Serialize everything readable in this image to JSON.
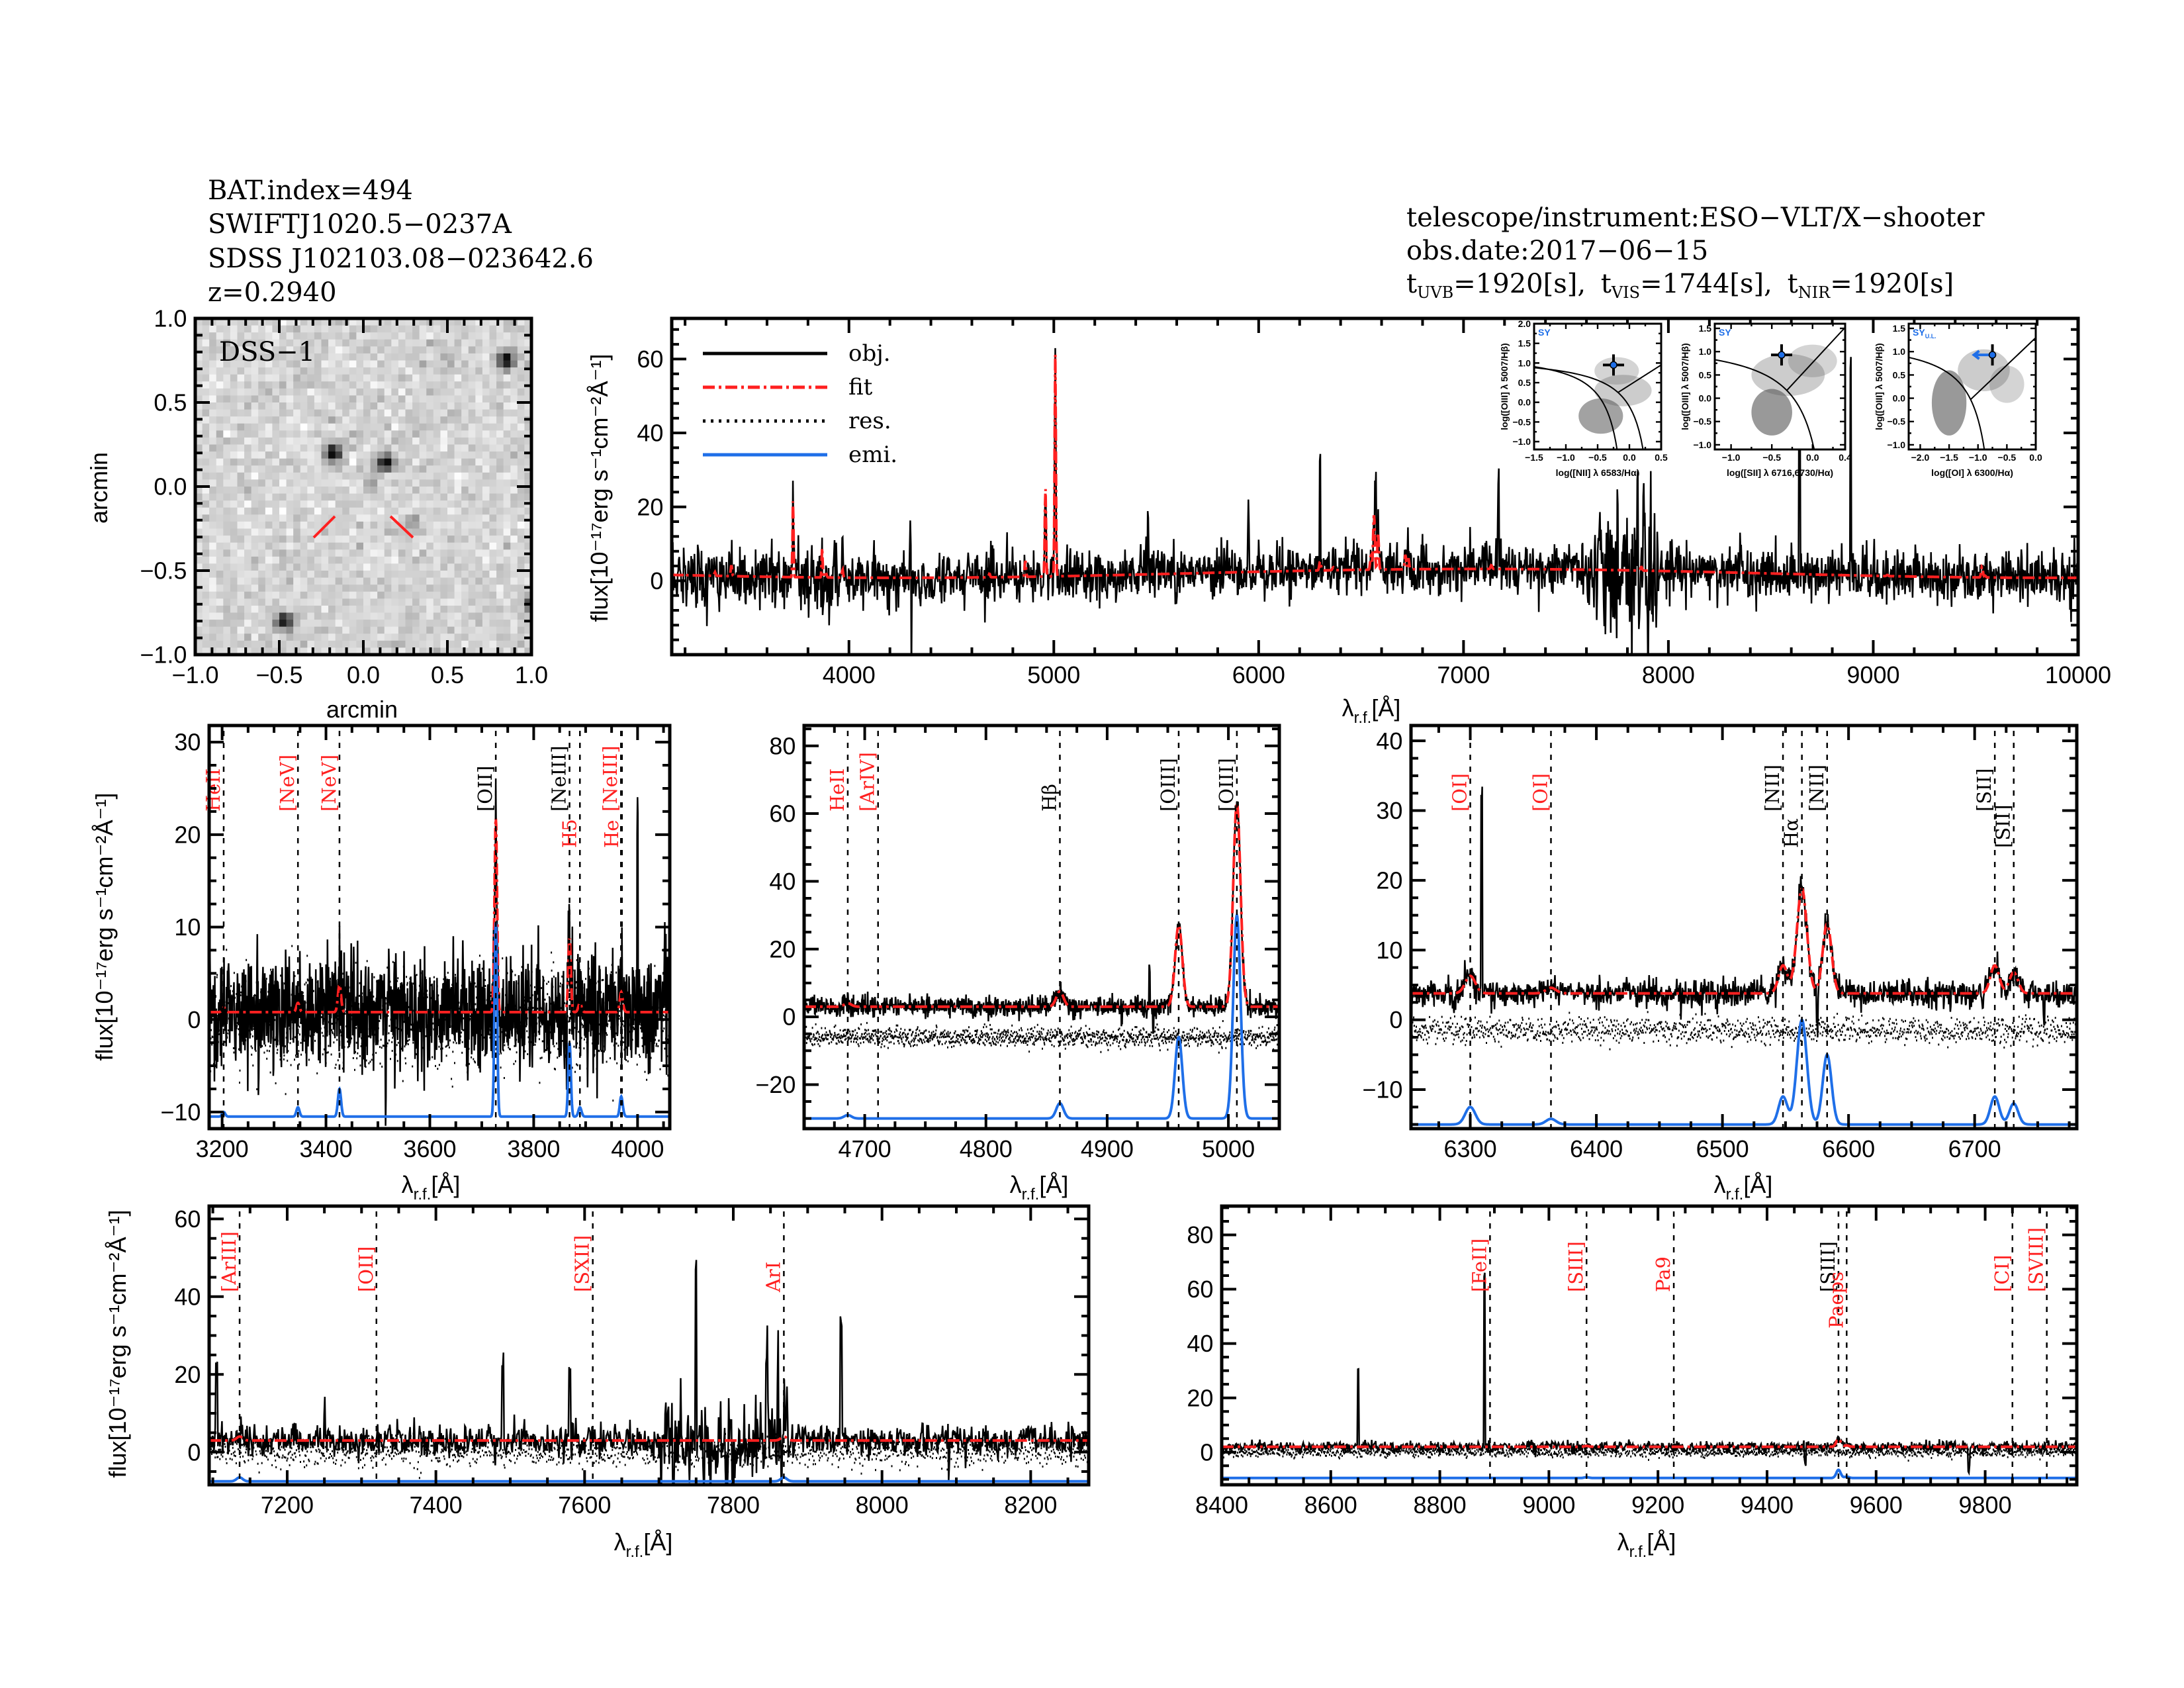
{
  "header": {
    "left": [
      "BAT.index=494",
      "SWIFTJ1020.5−0237A",
      "SDSS J102103.08−023642.6",
      "z=0.2940"
    ],
    "telescope": "telescope/instrument:ESO−VLT/X−shooter",
    "obs_date": "obs.date:2017−06−15",
    "exposures": [
      {
        "t": "t",
        "band": "UVB",
        "value": "=1920[s],"
      },
      {
        "t": "t",
        "band": "VIS",
        "value": "=1744[s],"
      },
      {
        "t": "t",
        "band": "NIR",
        "value": "=1920[s]"
      }
    ]
  },
  "labels": {
    "flux": "flux[10⁻¹⁷erg s⁻¹cm⁻²Å⁻¹]",
    "lambda": "λ",
    "lambda_sub": "r.f.",
    "lambda_unit": "[Å]",
    "arcmin": "arcmin",
    "dss": "DSS−1"
  },
  "legend": [
    {
      "label": "obj.",
      "color": "#000000",
      "style": "solid"
    },
    {
      "label": "fit",
      "color": "#ff2020",
      "style": "dashdot"
    },
    {
      "label": "res.",
      "color": "#000000",
      "style": "dotted"
    },
    {
      "label": "emi.",
      "color": "#1f6fe8",
      "style": "solid"
    }
  ],
  "colors": {
    "obj": "#000000",
    "fit": "#ff2020",
    "emi": "#1f6fe8",
    "red_label": "#ff2020",
    "black_label": "#000000"
  },
  "chart_data": {
    "type": "line",
    "dss": {
      "xlim": [
        -1.0,
        1.0
      ],
      "ylim": [
        -1.0,
        1.0
      ],
      "ticks": [
        "−1.0",
        "−0.5",
        "0.0",
        "0.5",
        "1.0"
      ],
      "tick_values": [
        -1,
        -0.5,
        0,
        0.5,
        1
      ],
      "sources": [
        [
          0.85,
          0.75,
          1.0
        ],
        [
          -0.18,
          0.2,
          1.0
        ],
        [
          0.13,
          0.14,
          1.0
        ],
        [
          -0.47,
          -0.8,
          0.9
        ],
        [
          1.0,
          -0.7,
          0.7
        ],
        [
          0.3,
          -0.22,
          0.3
        ],
        [
          0.05,
          0.03,
          0.25
        ]
      ]
    },
    "lines": [
      {
        "name": "HeII",
        "wave": 3203,
        "color": "red",
        "amp": 0.5,
        "sigma": 3
      },
      {
        "name": "[NeV]",
        "wave": 3346,
        "color": "red",
        "amp": 1.0,
        "sigma": 3
      },
      {
        "name": "[NeV]",
        "wave": 3426,
        "color": "red",
        "amp": 3.0,
        "sigma": 3
      },
      {
        "name": "[OII]",
        "wave": 3727,
        "color": "black",
        "amp": 21,
        "sigma": 2.5
      },
      {
        "name": "[NeIII]",
        "wave": 3869,
        "color": "black",
        "amp": 8,
        "sigma": 2.5
      },
      {
        "name": "H5",
        "wave": 3889,
        "color": "red",
        "amp": 1.0,
        "sigma": 3
      },
      {
        "name": "[NeIII]",
        "wave": 3968,
        "color": "red",
        "amp": 1.5,
        "sigma": 2.5
      },
      {
        "name": "He",
        "wave": 3970,
        "color": "red",
        "amp": 0.8,
        "sigma": 3
      },
      {
        "name": "HeII",
        "wave": 4686,
        "color": "red",
        "amp": 1.0,
        "sigma": 3
      },
      {
        "name": "[ArIV]",
        "wave": 4711,
        "color": "red",
        "amp": 0.0,
        "sigma": 3
      },
      {
        "name": "Hβ",
        "wave": 4861,
        "color": "black",
        "amp": 4.5,
        "sigma": 3
      },
      {
        "name": "[OIII]",
        "wave": 4959,
        "color": "black",
        "amp": 24,
        "sigma": 3
      },
      {
        "name": "[OIII]",
        "wave": 5007,
        "color": "black",
        "amp": 60,
        "sigma": 3
      },
      {
        "name": "[OI]",
        "wave": 6300,
        "color": "red",
        "amp": 2.5,
        "sigma": 4
      },
      {
        "name": "[OI]",
        "wave": 6364,
        "color": "red",
        "amp": 0.8,
        "sigma": 4
      },
      {
        "name": "[NII]",
        "wave": 6548,
        "color": "black",
        "amp": 4,
        "sigma": 3.5
      },
      {
        "name": "Hα",
        "wave": 6563,
        "color": "black",
        "amp": 15,
        "sigma": 4
      },
      {
        "name": "[NII]",
        "wave": 6583,
        "color": "black",
        "amp": 10,
        "sigma": 3.5
      },
      {
        "name": "[SII]",
        "wave": 6716,
        "color": "black",
        "amp": 4,
        "sigma": 3.5
      },
      {
        "name": "[SII]",
        "wave": 6731,
        "color": "black",
        "amp": 3,
        "sigma": 3.5
      },
      {
        "name": "[ArIII]",
        "wave": 7136,
        "color": "red",
        "amp": 1.0,
        "sigma": 4
      },
      {
        "name": "[OII]",
        "wave": 7320,
        "color": "red",
        "amp": 0.0,
        "sigma": 4
      },
      {
        "name": "[SXII]",
        "wave": 7611,
        "color": "red",
        "amp": 0.0,
        "sigma": 4
      },
      {
        "name": "ArI",
        "wave": 7868,
        "color": "red",
        "amp": 1.0,
        "sigma": 4
      },
      {
        "name": "[FeII]",
        "wave": 8892,
        "color": "red",
        "amp": 0.0,
        "sigma": 4
      },
      {
        "name": "[SIII]",
        "wave": 9069,
        "color": "red",
        "amp": 0.3,
        "sigma": 4
      },
      {
        "name": "Pa9",
        "wave": 9229,
        "color": "red",
        "amp": 0.0,
        "sigma": 4
      },
      {
        "name": "[SIII]",
        "wave": 9531,
        "color": "black",
        "amp": 3,
        "sigma": 4
      },
      {
        "name": "Paeps",
        "wave": 9546,
        "color": "red",
        "amp": 0.5,
        "sigma": 4
      },
      {
        "name": "[CI]",
        "wave": 9850,
        "color": "red",
        "amp": 0.0,
        "sigma": 4
      },
      {
        "name": "[SVIII]",
        "wave": 9913,
        "color": "red",
        "amp": 0.0,
        "sigma": 4
      }
    ],
    "panels": {
      "main": {
        "xlim": [
          3135,
          10000
        ],
        "ylim": [
          -20,
          71
        ],
        "xticks": [
          4000,
          5000,
          6000,
          7000,
          8000,
          9000,
          10000
        ],
        "yticks": [
          0,
          20,
          40,
          60
        ],
        "continuum": 2.0,
        "noise": 3.5,
        "res_offset": null,
        "emi_base": null,
        "spikes": [
          [
            4300,
            40
          ],
          [
            4302,
            -25
          ],
          [
            6300,
            30
          ],
          [
            6570,
            25
          ],
          [
            7170,
            20
          ],
          [
            7750,
            -25
          ],
          [
            7752,
            35
          ],
          [
            7850,
            25
          ],
          [
            7880,
            20
          ],
          [
            8640,
            45
          ],
          [
            8890,
            60
          ],
          [
            7900,
            -15
          ],
          [
            5950,
            15
          ],
          [
            5460,
            18
          ]
        ]
      },
      "uvb": {
        "xlim": [
          3175,
          4062
        ],
        "ylim": [
          -11.8,
          31.8
        ],
        "xticks": [
          3200,
          3400,
          3600,
          3800,
          4000
        ],
        "yticks": [
          -10,
          0,
          10,
          20,
          30
        ],
        "continuum": 0.8,
        "noise": 3.0,
        "res_offset": 0,
        "emi_base": -10.5,
        "spikes": [
          [
            3270,
            -12
          ],
          [
            3515,
            -12
          ],
          [
            4000,
            21
          ],
          [
            3870,
            4
          ]
        ]
      },
      "hb": {
        "xlim": [
          4650,
          5042
        ],
        "ylim": [
          -33,
          86
        ],
        "xticks": [
          4700,
          4800,
          4900,
          5000
        ],
        "yticks": [
          -20,
          0,
          20,
          40,
          60,
          80
        ],
        "continuum": 3.0,
        "noise": 1.5,
        "res_offset": -6,
        "emi_base": -30,
        "spikes": [
          [
            4912,
            -6
          ],
          [
            4935,
            12
          ],
          [
            4938,
            -8
          ]
        ]
      },
      "ha": {
        "xlim": [
          6253,
          6781
        ],
        "ylim": [
          -15.6,
          42.2
        ],
        "xticks": [
          6300,
          6400,
          6500,
          6600,
          6700
        ],
        "yticks": [
          -10,
          0,
          10,
          20,
          30,
          40
        ],
        "continuum": 3.8,
        "noise": 1.0,
        "res_offset": -1.5,
        "emi_base": -15,
        "spikes": [
          [
            6309,
            29
          ],
          [
            6575,
            -4
          ],
          [
            6755,
            -4
          ]
        ]
      },
      "nir1": {
        "xlim": [
          7095,
          8278
        ],
        "ylim": [
          -8.4,
          63.3
        ],
        "xticks": [
          7200,
          7400,
          7600,
          7800,
          8000,
          8200
        ],
        "yticks": [
          0,
          20,
          40,
          60
        ],
        "continuum": 3.0,
        "noise": 2.0,
        "res_offset": 0,
        "emi_base": -7.5,
        "spikes": [
          [
            7105,
            22
          ],
          [
            7250,
            9
          ],
          [
            7490,
            20
          ],
          [
            7580,
            18
          ],
          [
            7750,
            45
          ],
          [
            7845,
            25
          ],
          [
            7860,
            22
          ],
          [
            7945,
            30
          ],
          [
            7720,
            -12
          ],
          [
            7790,
            -10
          ],
          [
            8090,
            -8
          ]
        ]
      },
      "nir2": {
        "xlim": [
          8400,
          9968
        ],
        "ylim": [
          -12,
          90.6
        ],
        "xticks": [
          8400,
          8600,
          8800,
          9000,
          9200,
          9400,
          9600,
          9800
        ],
        "yticks": [
          0,
          20,
          40,
          60,
          80
        ],
        "continuum": 2.0,
        "noise": 1.0,
        "res_offset": 0,
        "emi_base": -9.5,
        "spikes": [
          [
            8650,
            28
          ],
          [
            8882,
            63
          ],
          [
            9770,
            -9
          ],
          [
            9470,
            -5
          ]
        ]
      }
    },
    "bpt": [
      {
        "xlabel": "log([NII] λ 6583/Hα)",
        "ylabel": "log([OIII] λ 5007/Hβ)",
        "class": "SY",
        "class_sub": "",
        "xlim": [
          -1.5,
          0.5
        ],
        "ylim": [
          -1.2,
          2.0
        ],
        "xticks": [
          -1.5,
          -1.0,
          -0.5,
          0.0,
          0.5
        ],
        "yticks": [
          -1.0,
          -0.5,
          0.0,
          0.5,
          1.0,
          1.5,
          2.0
        ],
        "point": [
          -0.25,
          0.95
        ],
        "upper_limit": false
      },
      {
        "xlabel": "log([SII] λ 6716,6730/Hα)",
        "ylabel": "log([OIII] λ 5007/Hβ)",
        "class": "SY",
        "class_sub": "",
        "xlim": [
          -1.2,
          0.4
        ],
        "ylim": [
          -1.1,
          1.6
        ],
        "xticks": [
          -1.0,
          -0.5,
          0.0,
          0.4
        ],
        "yticks": [
          -1.0,
          -0.5,
          0.0,
          0.5,
          1.0,
          1.5
        ],
        "point": [
          -0.38,
          0.93
        ],
        "upper_limit": false
      },
      {
        "xlabel": "log([OI] λ 6300/Hα)",
        "ylabel": "log([OIII] λ 5007/Hβ)",
        "class": "SY",
        "class_sub": "U.L.",
        "xlim": [
          -2.2,
          0.0
        ],
        "ylim": [
          -1.1,
          1.6
        ],
        "xticks": [
          -2.0,
          -1.5,
          -1.0,
          -0.5,
          0.0
        ],
        "yticks": [
          -1.0,
          -0.5,
          0.0,
          0.5,
          1.0,
          1.5
        ],
        "point": [
          -0.75,
          0.93
        ],
        "upper_limit": true
      }
    ]
  }
}
